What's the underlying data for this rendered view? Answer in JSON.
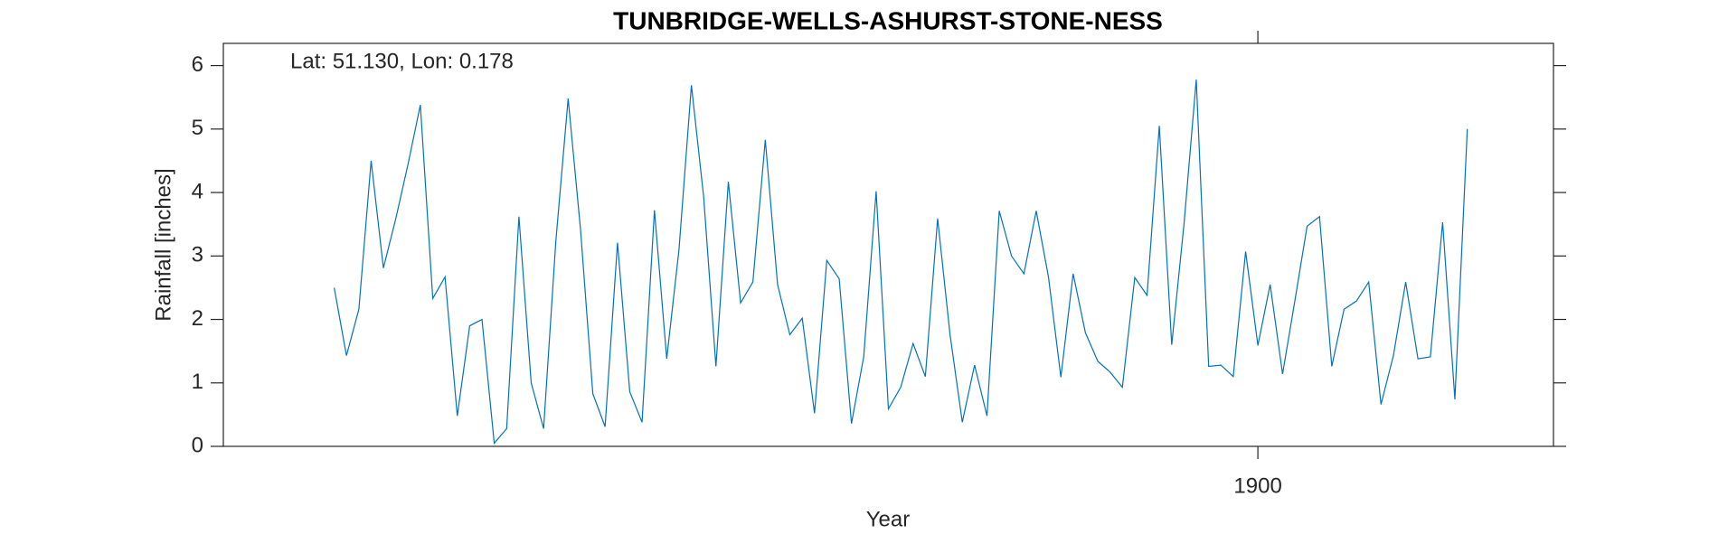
{
  "chart_data": {
    "type": "line",
    "title": "TUNBRIDGE-WELLS-ASHURST-STONE-NESS",
    "annotation": "Lat: 51.130, Lon: 0.178",
    "xlabel": "Year",
    "ylabel": "Rainfall [inches]",
    "x": [
      1893.75,
      1893.833,
      1893.917,
      1894,
      1894.083,
      1894.167,
      1894.25,
      1894.333,
      1894.417,
      1894.5,
      1894.583,
      1894.667,
      1894.75,
      1894.833,
      1894.917,
      1895,
      1895.083,
      1895.167,
      1895.25,
      1895.333,
      1895.417,
      1895.5,
      1895.583,
      1895.667,
      1895.75,
      1895.833,
      1895.917,
      1896,
      1896.083,
      1896.167,
      1896.25,
      1896.333,
      1896.417,
      1896.5,
      1896.583,
      1896.667,
      1896.75,
      1896.833,
      1896.917,
      1897,
      1897.083,
      1897.167,
      1897.25,
      1897.333,
      1897.417,
      1897.5,
      1897.583,
      1897.667,
      1897.75,
      1897.833,
      1897.917,
      1898,
      1898.083,
      1898.167,
      1898.25,
      1898.333,
      1898.417,
      1898.5,
      1898.583,
      1898.667,
      1898.75,
      1898.833,
      1898.917,
      1899,
      1899.083,
      1899.167,
      1899.25,
      1899.333,
      1899.417,
      1899.5,
      1899.583,
      1899.667,
      1899.75,
      1899.833,
      1899.917,
      1900,
      1900.083,
      1900.167,
      1900.25,
      1900.333,
      1900.417,
      1900.5,
      1900.583,
      1900.667,
      1900.75,
      1900.833,
      1900.917,
      1901,
      1901.083,
      1901.167,
      1901.25,
      1901.333,
      1901.417
    ],
    "series": [
      {
        "name": "Rainfall",
        "color": "#0072bd",
        "values": [
          2.5,
          1.43,
          2.16,
          4.5,
          2.81,
          3.59,
          4.45,
          5.38,
          2.33,
          2.67,
          0.48,
          1.9,
          2.0,
          0.05,
          0.28,
          3.62,
          1.0,
          0.28,
          3.24,
          5.48,
          3.41,
          0.83,
          0.31,
          3.21,
          0.86,
          0.38,
          3.72,
          1.38,
          3.1,
          5.69,
          3.93,
          1.26,
          4.17,
          2.26,
          2.59,
          4.83,
          2.55,
          1.76,
          2.02,
          0.52,
          2.93,
          2.64,
          0.36,
          1.41,
          4.02,
          0.59,
          0.93,
          1.62,
          1.1,
          3.59,
          1.76,
          0.38,
          1.28,
          0.48,
          3.71,
          3.0,
          2.72,
          3.71,
          2.67,
          1.09,
          2.72,
          1.79,
          1.34,
          1.17,
          0.93,
          2.66,
          2.38,
          5.05,
          1.6,
          3.5,
          5.78,
          1.26,
          1.28,
          1.1,
          3.07,
          1.59,
          2.55,
          1.14,
          2.29,
          3.47,
          3.62,
          1.26,
          2.16,
          2.29,
          2.59,
          0.66,
          1.43,
          2.59,
          1.38,
          1.41,
          3.53,
          0.74,
          5.0
        ]
      }
    ],
    "xlim": [
      1893,
      1902
    ],
    "xticks": [
      1900
    ],
    "ylim": [
      0,
      6.35
    ],
    "yticks": [
      0,
      1,
      2,
      3,
      4,
      5,
      6
    ]
  }
}
